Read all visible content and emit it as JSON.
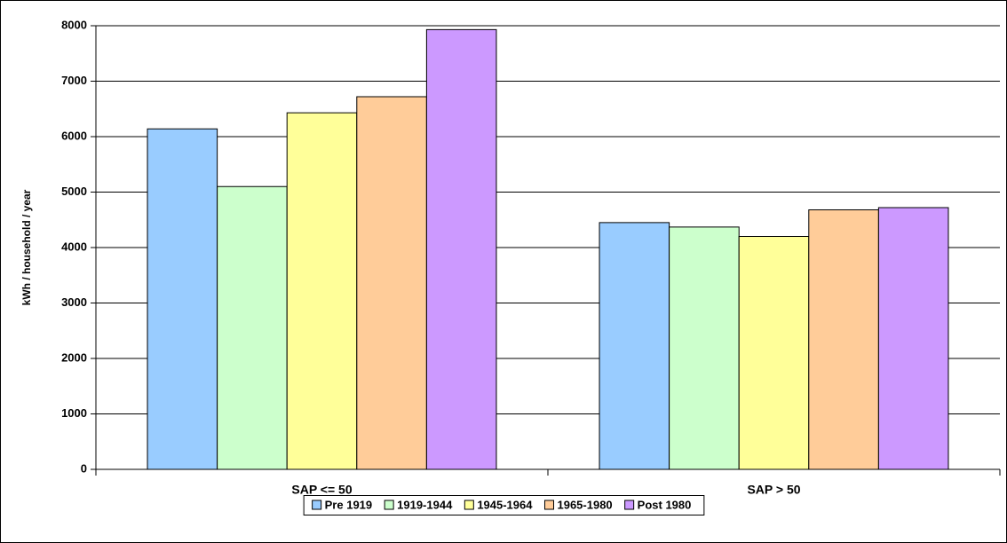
{
  "chart_data": {
    "type": "bar",
    "y_label": "kWh / household / year",
    "categories": [
      "SAP <= 50",
      "SAP > 50"
    ],
    "series": [
      {
        "name": "Pre 1919",
        "color": "#99ccff",
        "values": [
          6140,
          4450
        ]
      },
      {
        "name": "1919-1944",
        "color": "#ccffcc",
        "values": [
          5100,
          4370
        ]
      },
      {
        "name": "1945-1964",
        "color": "#ffff99",
        "values": [
          6430,
          4200
        ]
      },
      {
        "name": "1965-1980",
        "color": "#ffcc99",
        "values": [
          6720,
          4680
        ]
      },
      {
        "name": "Post 1980",
        "color": "#cc99ff",
        "values": [
          7930,
          4720
        ]
      }
    ],
    "ylim": [
      0,
      8000
    ],
    "yticks": [
      0,
      1000,
      2000,
      3000,
      4000,
      5000,
      6000,
      7000,
      8000
    ],
    "grid": true,
    "legend": "bottom"
  }
}
